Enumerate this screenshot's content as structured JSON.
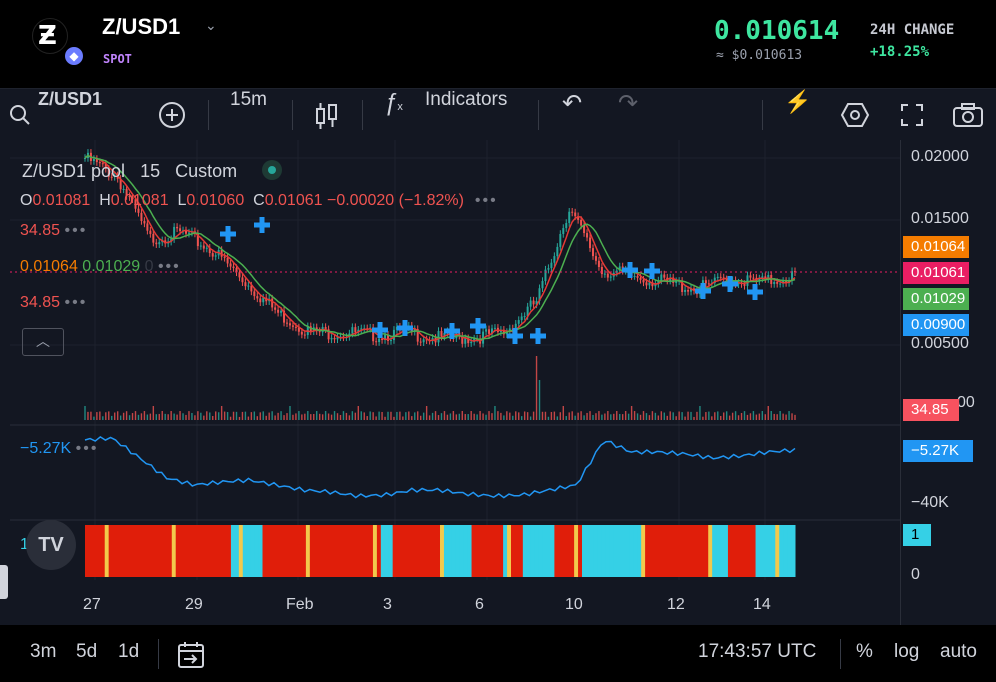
{
  "header": {
    "pair": "Z/USD1",
    "market_type": "SPOT",
    "price": "0.010614",
    "price_usd": "≈ $0.010613",
    "change_label": "24H CHANGE",
    "change_value": "+18.25%"
  },
  "toolbar": {
    "symbol": "Z/USD1",
    "interval": "15m",
    "indicators_label": "Indicators"
  },
  "legend": {
    "title": "Z/USD1 pool",
    "interval": "15",
    "mode": "Custom",
    "o_label": "O",
    "o_value": "0.01081",
    "h_label": "H",
    "h_value": "0.01081",
    "l_label": "L",
    "l_value": "0.01060",
    "c_label": "C",
    "c_value": "0.01061",
    "change": "−0.00020 (−1.82%)",
    "ind1": "34.85",
    "ma_a": "0.01064",
    "ma_b": "0.01029",
    "ma_c": "0",
    "ind3": "34.85",
    "osc_value": "−5.27K",
    "hist_value": "1"
  },
  "price_axis": {
    "ticks": [
      "0.02000",
      "0.01500",
      "0.00500"
    ],
    "badges": [
      {
        "value": "0.01064",
        "color": "#f57c00"
      },
      {
        "value": "0.01061",
        "color": "#e91e63"
      },
      {
        "value": "0.01029",
        "color": "#4caf50"
      },
      {
        "value": "0.00900",
        "color": "#2196f3"
      }
    ],
    "volume_badge": "34.85",
    "volume_tick": "00",
    "osc_badge": "−5.27K",
    "osc_tick": "−40K",
    "hist_badge": "1",
    "hist_tick": "0"
  },
  "time_axis": [
    "27",
    "29",
    "Feb",
    "3",
    "6",
    "10",
    "12",
    "14"
  ],
  "bottom": {
    "ranges": [
      "3m",
      "5d",
      "1d"
    ],
    "time": "17:43:57 UTC",
    "percent": "%",
    "log": "log",
    "auto": "auto"
  },
  "colors": {
    "up": "#26a69a",
    "down": "#ef5350",
    "accent_green": "#3ee6a0",
    "signal": "#2196f3",
    "hist_red": "#e01e0a",
    "hist_cyan": "#35d0e6"
  },
  "chart_data": {
    "type": "candlestick",
    "x_labels": [
      "27",
      "29",
      "Feb",
      "3",
      "6",
      "10",
      "12",
      "14"
    ],
    "price_close_trend": [
      0.02,
      0.0185,
      0.0135,
      0.014,
      0.0125,
      0.01,
      0.0075,
      0.006,
      0.006,
      0.0058,
      0.006,
      0.0055,
      0.0056,
      0.006,
      0.0085,
      0.016,
      0.011,
      0.0105,
      0.01,
      0.0095,
      0.0103,
      0.01,
      0.0106
    ],
    "ylim": [
      0.005,
      0.02
    ],
    "oscillator_value": "−5.27K"
  }
}
